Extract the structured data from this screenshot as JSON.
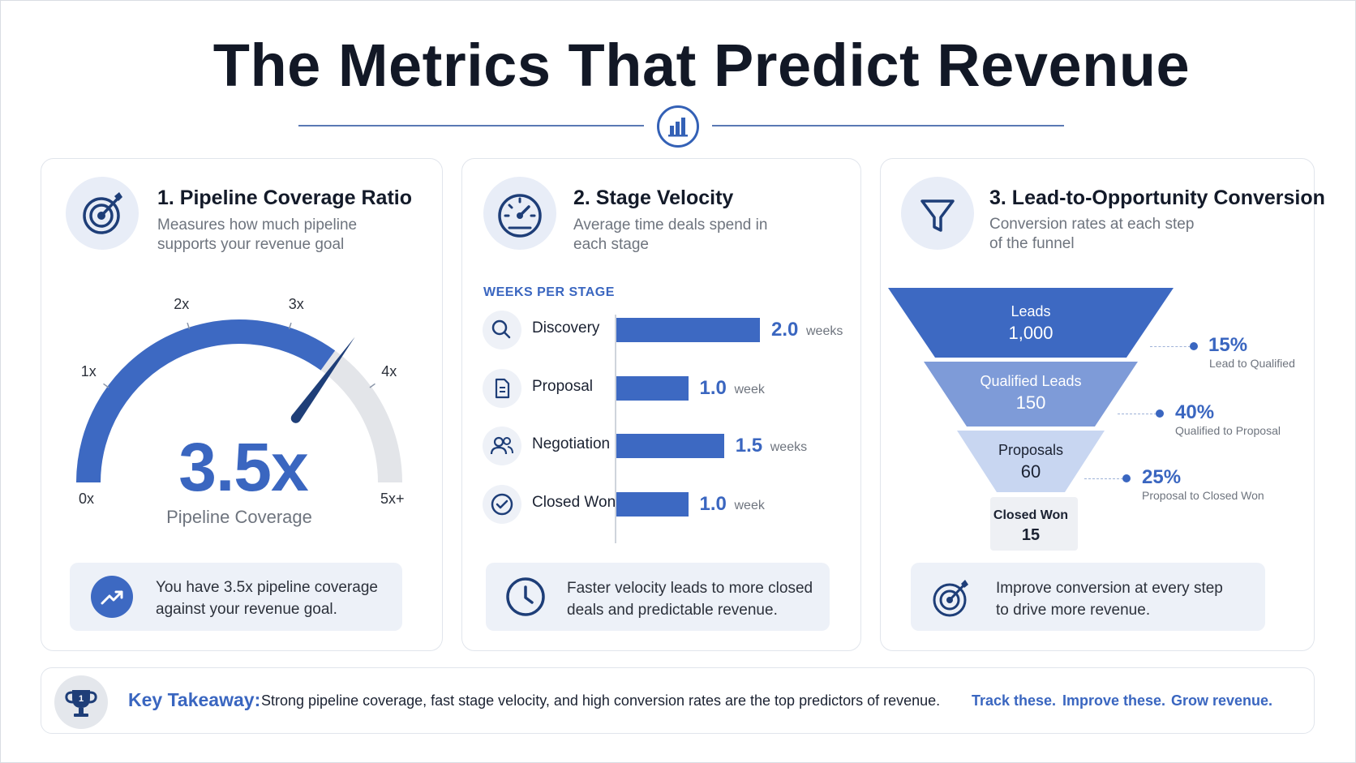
{
  "header": {
    "title": "The Metrics That Predict Revenue",
    "icon": "bar-chart-icon"
  },
  "colors": {
    "accent": "#3a66c0",
    "accent_dark": "#1e3e78",
    "funnel_1": "#3d69c2",
    "funnel_2": "#7e9bd8",
    "funnel_3": "#c8d6f1",
    "funnel_4": "#eef0f4",
    "gauge_track": "#e3e5e9",
    "text_dark": "#131a29",
    "text_muted": "#6e747e"
  },
  "coverage": {
    "title": "1. Pipeline Coverage Ratio",
    "desc_line1": "Measures how much pipeline",
    "desc_line2": "supports your revenue goal",
    "icon": "target-icon",
    "callout_line1": "You have 3.5x pipeline coverage",
    "callout_line2": "against your revenue goal.",
    "callout_icon": "trending-up-icon"
  },
  "velocity": {
    "title": "2. Stage Velocity",
    "desc_line1": "Average time deals spend in",
    "desc_line2": "each stage",
    "icon": "speedometer-icon",
    "section_label": "WEEKS PER STAGE",
    "callout_line1": "Faster velocity leads to more closed",
    "callout_line2": "deals and predictable revenue.",
    "callout_icon": "clock-icon"
  },
  "conversion": {
    "title": "3. Lead-to-Opportunity Conversion",
    "desc_line1": "Conversion rates at each step",
    "desc_line2": "of the funnel",
    "icon": "funnel-icon",
    "callout_line1": "Improve conversion at every step",
    "callout_line2": "to drive more revenue.",
    "callout_icon": "target-icon"
  },
  "takeaway": {
    "label": "Key Takeaway:",
    "text": "Strong pipeline coverage, fast stage velocity, and high conversion rates are the top predictors of revenue.",
    "cta_1": "Track these.",
    "cta_2": "Improve these.",
    "cta_3": "Grow revenue.",
    "icon": "trophy-icon"
  },
  "chart_data": [
    {
      "type": "gauge",
      "value": 3.5,
      "value_label": "3.5x",
      "caption": "Pipeline Coverage",
      "range": [
        0,
        5
      ],
      "ticks": [
        {
          "value": 0,
          "label": "0x"
        },
        {
          "value": 1,
          "label": "1x"
        },
        {
          "value": 2,
          "label": "2x"
        },
        {
          "value": 3,
          "label": "3x"
        },
        {
          "value": 4,
          "label": "4x"
        },
        {
          "value": 5,
          "label": "5x+"
        }
      ]
    },
    {
      "type": "bar",
      "orientation": "horizontal",
      "categories": [
        "Discovery",
        "Proposal",
        "Negotiation",
        "Closed Won"
      ],
      "icons": [
        "search-icon",
        "document-icon",
        "users-icon",
        "check-circle-icon"
      ],
      "values": [
        2.0,
        1.0,
        1.5,
        1.0
      ],
      "value_labels": [
        "2.0",
        "1.0",
        "1.5",
        "1.0"
      ],
      "units": [
        "weeks",
        "week",
        "weeks",
        "week"
      ],
      "xlim": [
        0,
        2.0
      ]
    },
    {
      "type": "funnel",
      "stages": [
        {
          "name": "Leads",
          "value": 1000,
          "value_label": "1,000"
        },
        {
          "name": "Qualified Leads",
          "value": 150,
          "value_label": "150"
        },
        {
          "name": "Proposals",
          "value": 60,
          "value_label": "60"
        },
        {
          "name": "Closed Won",
          "value": 15,
          "value_label": "15"
        }
      ],
      "conversions": [
        {
          "rate": 15,
          "label": "15%",
          "description": "Lead to Qualified"
        },
        {
          "rate": 40,
          "label": "40%",
          "description": "Qualified to Proposal"
        },
        {
          "rate": 25,
          "label": "25%",
          "description": "Proposal to Closed Won"
        }
      ]
    }
  ]
}
